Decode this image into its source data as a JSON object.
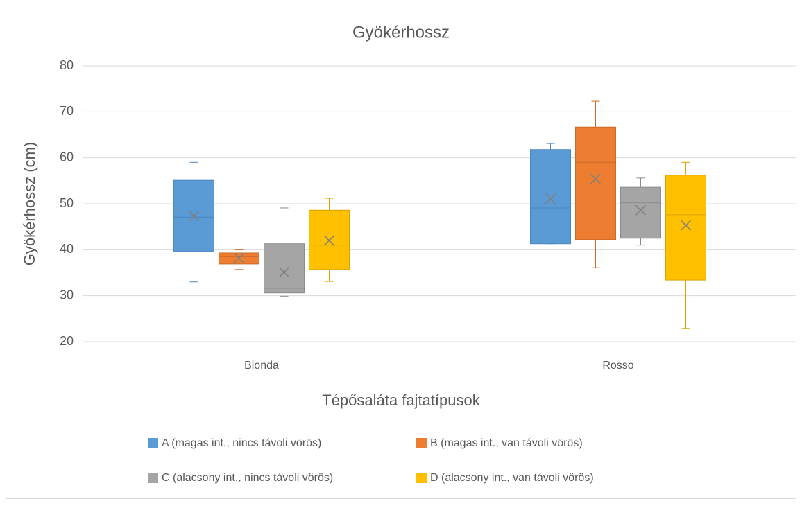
{
  "chart_data": {
    "type": "box",
    "title": "Gyökérhossz",
    "x_label": "Tépősaláta fajtatípusok",
    "y_label": "Gyökérhossz (cm)",
    "categories": [
      "Bionda",
      "Rosso"
    ],
    "ylim": [
      20,
      80
    ],
    "yticks": [
      20,
      30,
      40,
      50,
      60,
      70,
      80
    ],
    "grid": true,
    "legend": "bottom",
    "series": [
      {
        "name": "A (magas int., nincs távoli vörös)",
        "color": "#5b9bd5",
        "stroke": "#4a86c0",
        "min": [
          33,
          41.3
        ],
        "q1": [
          39.6,
          41.3
        ],
        "median": [
          47.1,
          49.1
        ],
        "q3": [
          55.1,
          61.8
        ],
        "max": [
          59,
          63.1
        ],
        "mean": [
          47.3,
          51.1
        ]
      },
      {
        "name": "B (magas int., van távoli vörös)",
        "color": "#ed7d31",
        "stroke": "#c96a28",
        "min": [
          35.7,
          36.1
        ],
        "q1": [
          36.9,
          42.2
        ],
        "median": [
          38.5,
          59
        ],
        "q3": [
          39.3,
          66.7
        ],
        "max": [
          40,
          72.3
        ],
        "mean": [
          38.2,
          55.4
        ]
      },
      {
        "name": "C (alacsony int., nincs távoli vörös)",
        "color": "#a5a5a5",
        "stroke": "#8c8c8c",
        "min": [
          29.9,
          41
        ],
        "q1": [
          30.6,
          42.5
        ],
        "median": [
          31.6,
          50.2
        ],
        "q3": [
          41.3,
          53.6
        ],
        "max": [
          49.1,
          55.6
        ],
        "mean": [
          35.1,
          48.6
        ]
      },
      {
        "name": "D (alacsony int., van távoli vörös)",
        "color": "#ffc000",
        "stroke": "#d9a300",
        "min": [
          33.1,
          22.9
        ],
        "q1": [
          35.7,
          33.4
        ],
        "median": [
          41,
          47.6
        ],
        "q3": [
          48.6,
          56.2
        ],
        "max": [
          51.2,
          59
        ],
        "mean": [
          42,
          45.3
        ]
      }
    ]
  }
}
